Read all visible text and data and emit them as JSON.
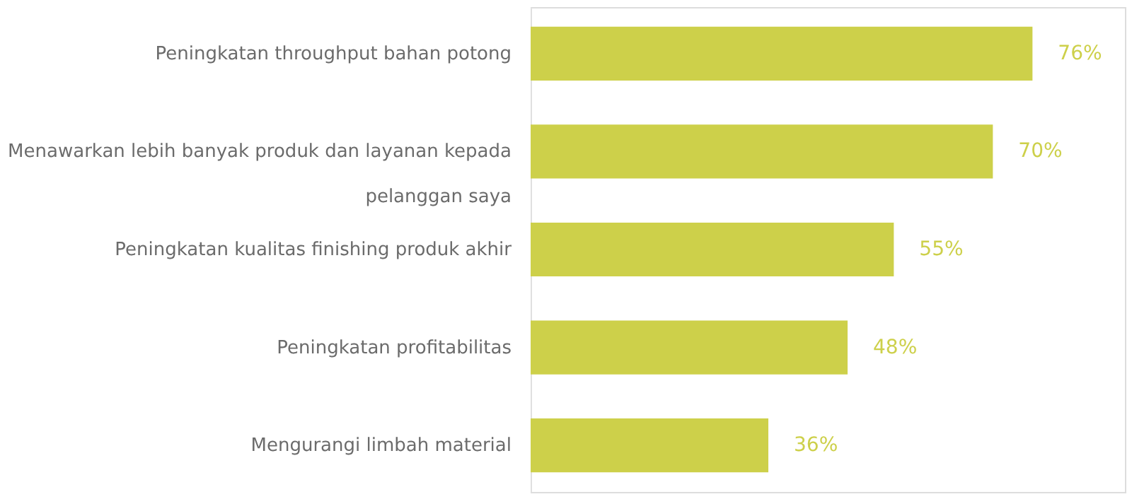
{
  "chart_data": {
    "type": "bar",
    "orientation": "horizontal",
    "categories": [
      "Peningkatan throughput bahan potong",
      "Menawarkan lebih banyak produk dan layanan kepada pelanggan saya",
      "Peningkatan kualitas finishing produk akhir",
      "Peningkatan profitabilitas",
      "Mengurangi limbah material"
    ],
    "values": [
      76,
      70,
      55,
      48,
      36
    ],
    "value_labels": [
      "76%",
      "70%",
      "55%",
      "48%",
      "36%"
    ],
    "color": "#cdd04a",
    "xlim": [
      0,
      90
    ],
    "grid": false,
    "tick_labels": "y"
  }
}
